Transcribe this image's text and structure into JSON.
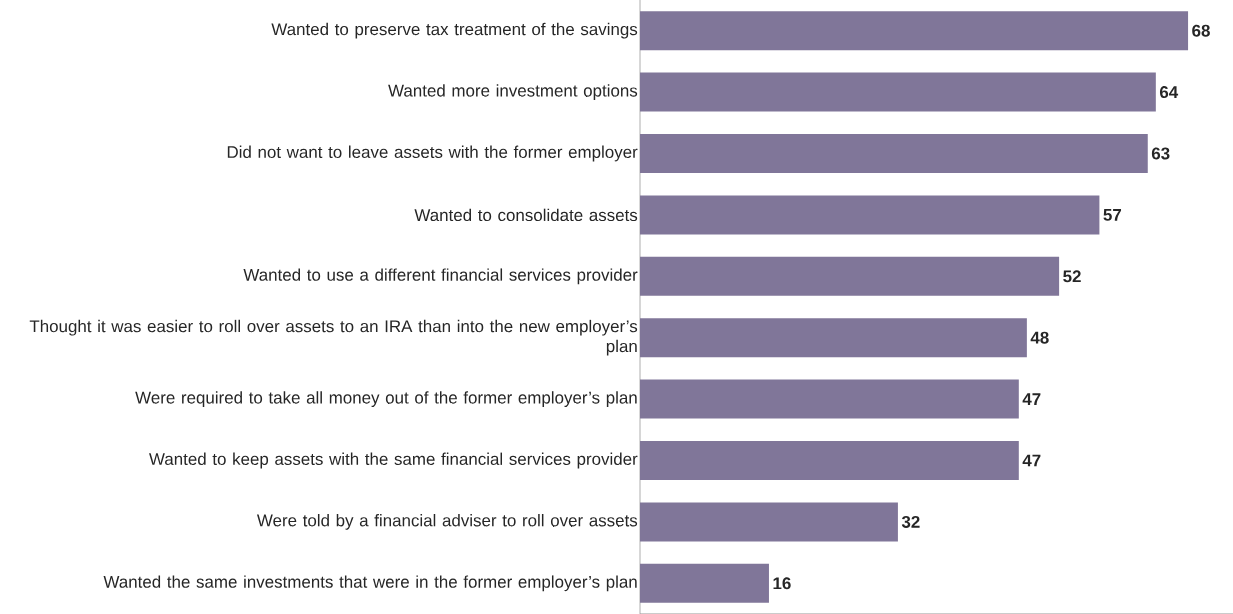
{
  "chart_data": {
    "type": "bar",
    "orientation": "horizontal",
    "relative": false,
    "data_labels": true,
    "color": "#807699",
    "categories": [
      "Wanted to preserve tax treatment of the savings",
      "Wanted more investment options",
      "Did not want to leave assets with the former employer",
      "Wanted to consolidate assets",
      "Wanted to use a different financial services provider",
      "Thought it was easier to roll over assets to an IRA than into the new employer’s plan",
      "Were required to take all money out of the former employer’s plan",
      "Wanted to keep assets with the same financial services provider",
      "Were told by a financial adviser to roll over assets",
      "Wanted the same investments that were in the former employer’s plan"
    ],
    "values": [
      68,
      64,
      63,
      57,
      52,
      48,
      47,
      47,
      32,
      16
    ]
  }
}
